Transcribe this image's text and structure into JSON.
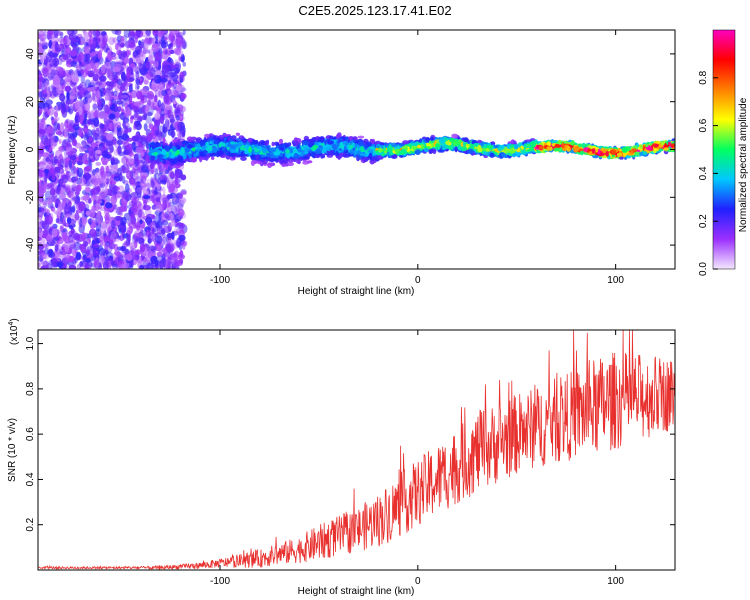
{
  "title": "C2E5.2025.123.17.41.E02",
  "chart_data": [
    {
      "type": "heatmap",
      "xlabel": "Height of straight line (km)",
      "ylabel": "Frequency (Hz)",
      "xlim": [
        -192,
        130
      ],
      "ylim": [
        -50,
        50
      ],
      "x_ticks": [
        -100,
        0,
        100
      ],
      "x_tick_labels": [
        "-100",
        "0",
        "100"
      ],
      "y_ticks": [
        -40,
        -20,
        0,
        20,
        40
      ],
      "y_tick_labels": [
        "-40",
        "-20",
        "0",
        "20",
        "40"
      ],
      "grid": false,
      "colorbar": {
        "label": "Normalized spectral amplitude",
        "range": [
          0,
          1
        ],
        "ticks": [
          0,
          0.2,
          0.4,
          0.6,
          0.8
        ],
        "tick_labels": [
          "0.0",
          "0.2",
          "0.4",
          "0.6",
          "0.8"
        ],
        "colors": [
          "#f4e8ff",
          "#9b30ff",
          "#2020ff",
          "#00c8ff",
          "#00ff60",
          "#ffff00",
          "#ff8000",
          "#ff0000",
          "#ff00c0"
        ]
      },
      "regions": [
        {
          "x_range": [
            -192,
            -118
          ],
          "freq_range": [
            -50,
            50
          ],
          "amplitude": 0.2,
          "description": "broadband noise"
        },
        {
          "x_range": [
            -135,
            -20
          ],
          "freq_center": 0,
          "freq_halfwidth": 7,
          "amplitude": 0.4
        },
        {
          "x_range": [
            -20,
            60
          ],
          "freq_center": 1,
          "freq_halfwidth": 4,
          "amplitude": 0.6
        },
        {
          "x_range": [
            60,
            130
          ],
          "freq_center": 0,
          "freq_halfwidth": 3,
          "amplitude": 0.9
        }
      ]
    },
    {
      "type": "line",
      "xlabel": "Height of straight line (km)",
      "ylabel": "SNR (10 * v/v)",
      "y_multiplier": "(x10",
      "y_multiplier_exp": "4",
      "y_multiplier_close": ")",
      "xlim": [
        -192,
        130
      ],
      "ylim": [
        0,
        1.06
      ],
      "x_ticks": [
        -100,
        0,
        100
      ],
      "x_tick_labels": [
        "-100",
        "0",
        "100"
      ],
      "y_ticks": [
        0.2,
        0.4,
        0.6,
        0.8,
        1.0
      ],
      "y_tick_labels": [
        "0.2",
        "0.4",
        "0.6",
        "0.8",
        "1.0"
      ],
      "grid": false,
      "series": [
        {
          "color": "#e8312e",
          "x": [
            -192,
            -170,
            -150,
            -130,
            -120,
            -110,
            -100,
            -90,
            -80,
            -70,
            -60,
            -50,
            -40,
            -30,
            -20,
            -10,
            0,
            10,
            20,
            30,
            40,
            50,
            60,
            70,
            80,
            90,
            100,
            110,
            120,
            130
          ],
          "y": [
            0.01,
            0.01,
            0.01,
            0.01,
            0.015,
            0.02,
            0.03,
            0.04,
            0.05,
            0.07,
            0.09,
            0.12,
            0.15,
            0.18,
            0.22,
            0.28,
            0.34,
            0.4,
            0.46,
            0.52,
            0.56,
            0.6,
            0.63,
            0.66,
            0.69,
            0.72,
            0.75,
            0.76,
            0.77,
            0.78
          ],
          "spread": [
            0.005,
            0.005,
            0.005,
            0.008,
            0.01,
            0.015,
            0.02,
            0.03,
            0.04,
            0.05,
            0.06,
            0.08,
            0.09,
            0.1,
            0.12,
            0.14,
            0.15,
            0.16,
            0.17,
            0.18,
            0.18,
            0.18,
            0.18,
            0.19,
            0.2,
            0.22,
            0.22,
            0.2,
            0.18,
            0.16
          ]
        }
      ]
    }
  ]
}
